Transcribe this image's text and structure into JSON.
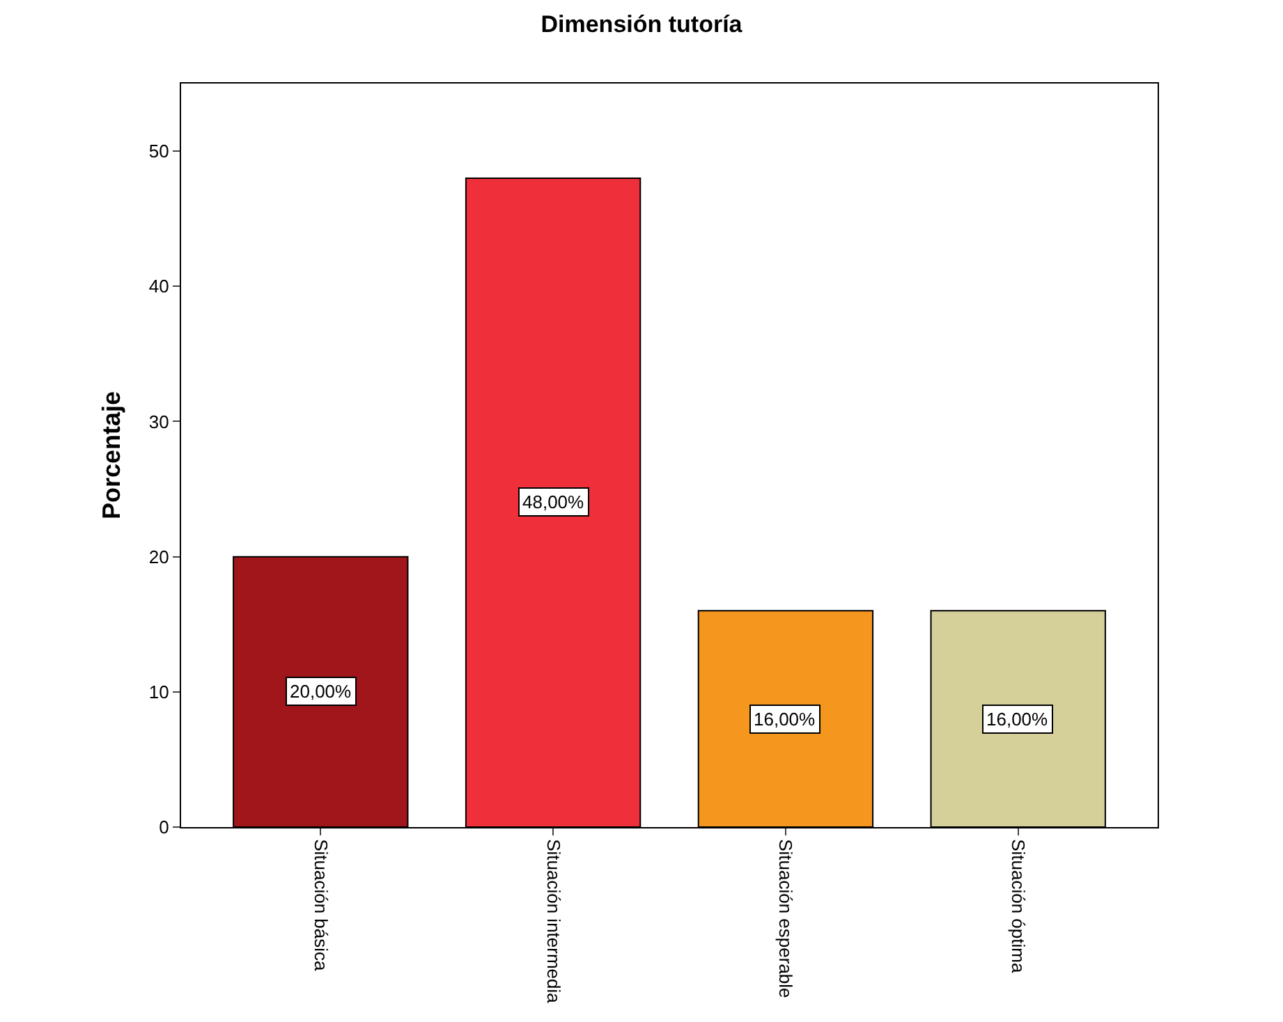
{
  "chart_data": {
    "type": "bar",
    "title": "Dimensión tutoría",
    "ylabel": "Porcentaje",
    "categories": [
      "Situación básica",
      "Situación intermedia",
      "Situación esperable",
      "Situación óptima"
    ],
    "values": [
      20,
      48,
      16,
      16
    ],
    "colors": [
      "#a0161a",
      "#ef303a",
      "#f5961f",
      "#d5d09a"
    ],
    "value_labels": [
      "20,00%",
      "48,00%",
      "16,00%",
      "16,00%"
    ],
    "ylim": [
      0,
      55
    ],
    "yticks": [
      0,
      10,
      20,
      30,
      40,
      50
    ]
  }
}
